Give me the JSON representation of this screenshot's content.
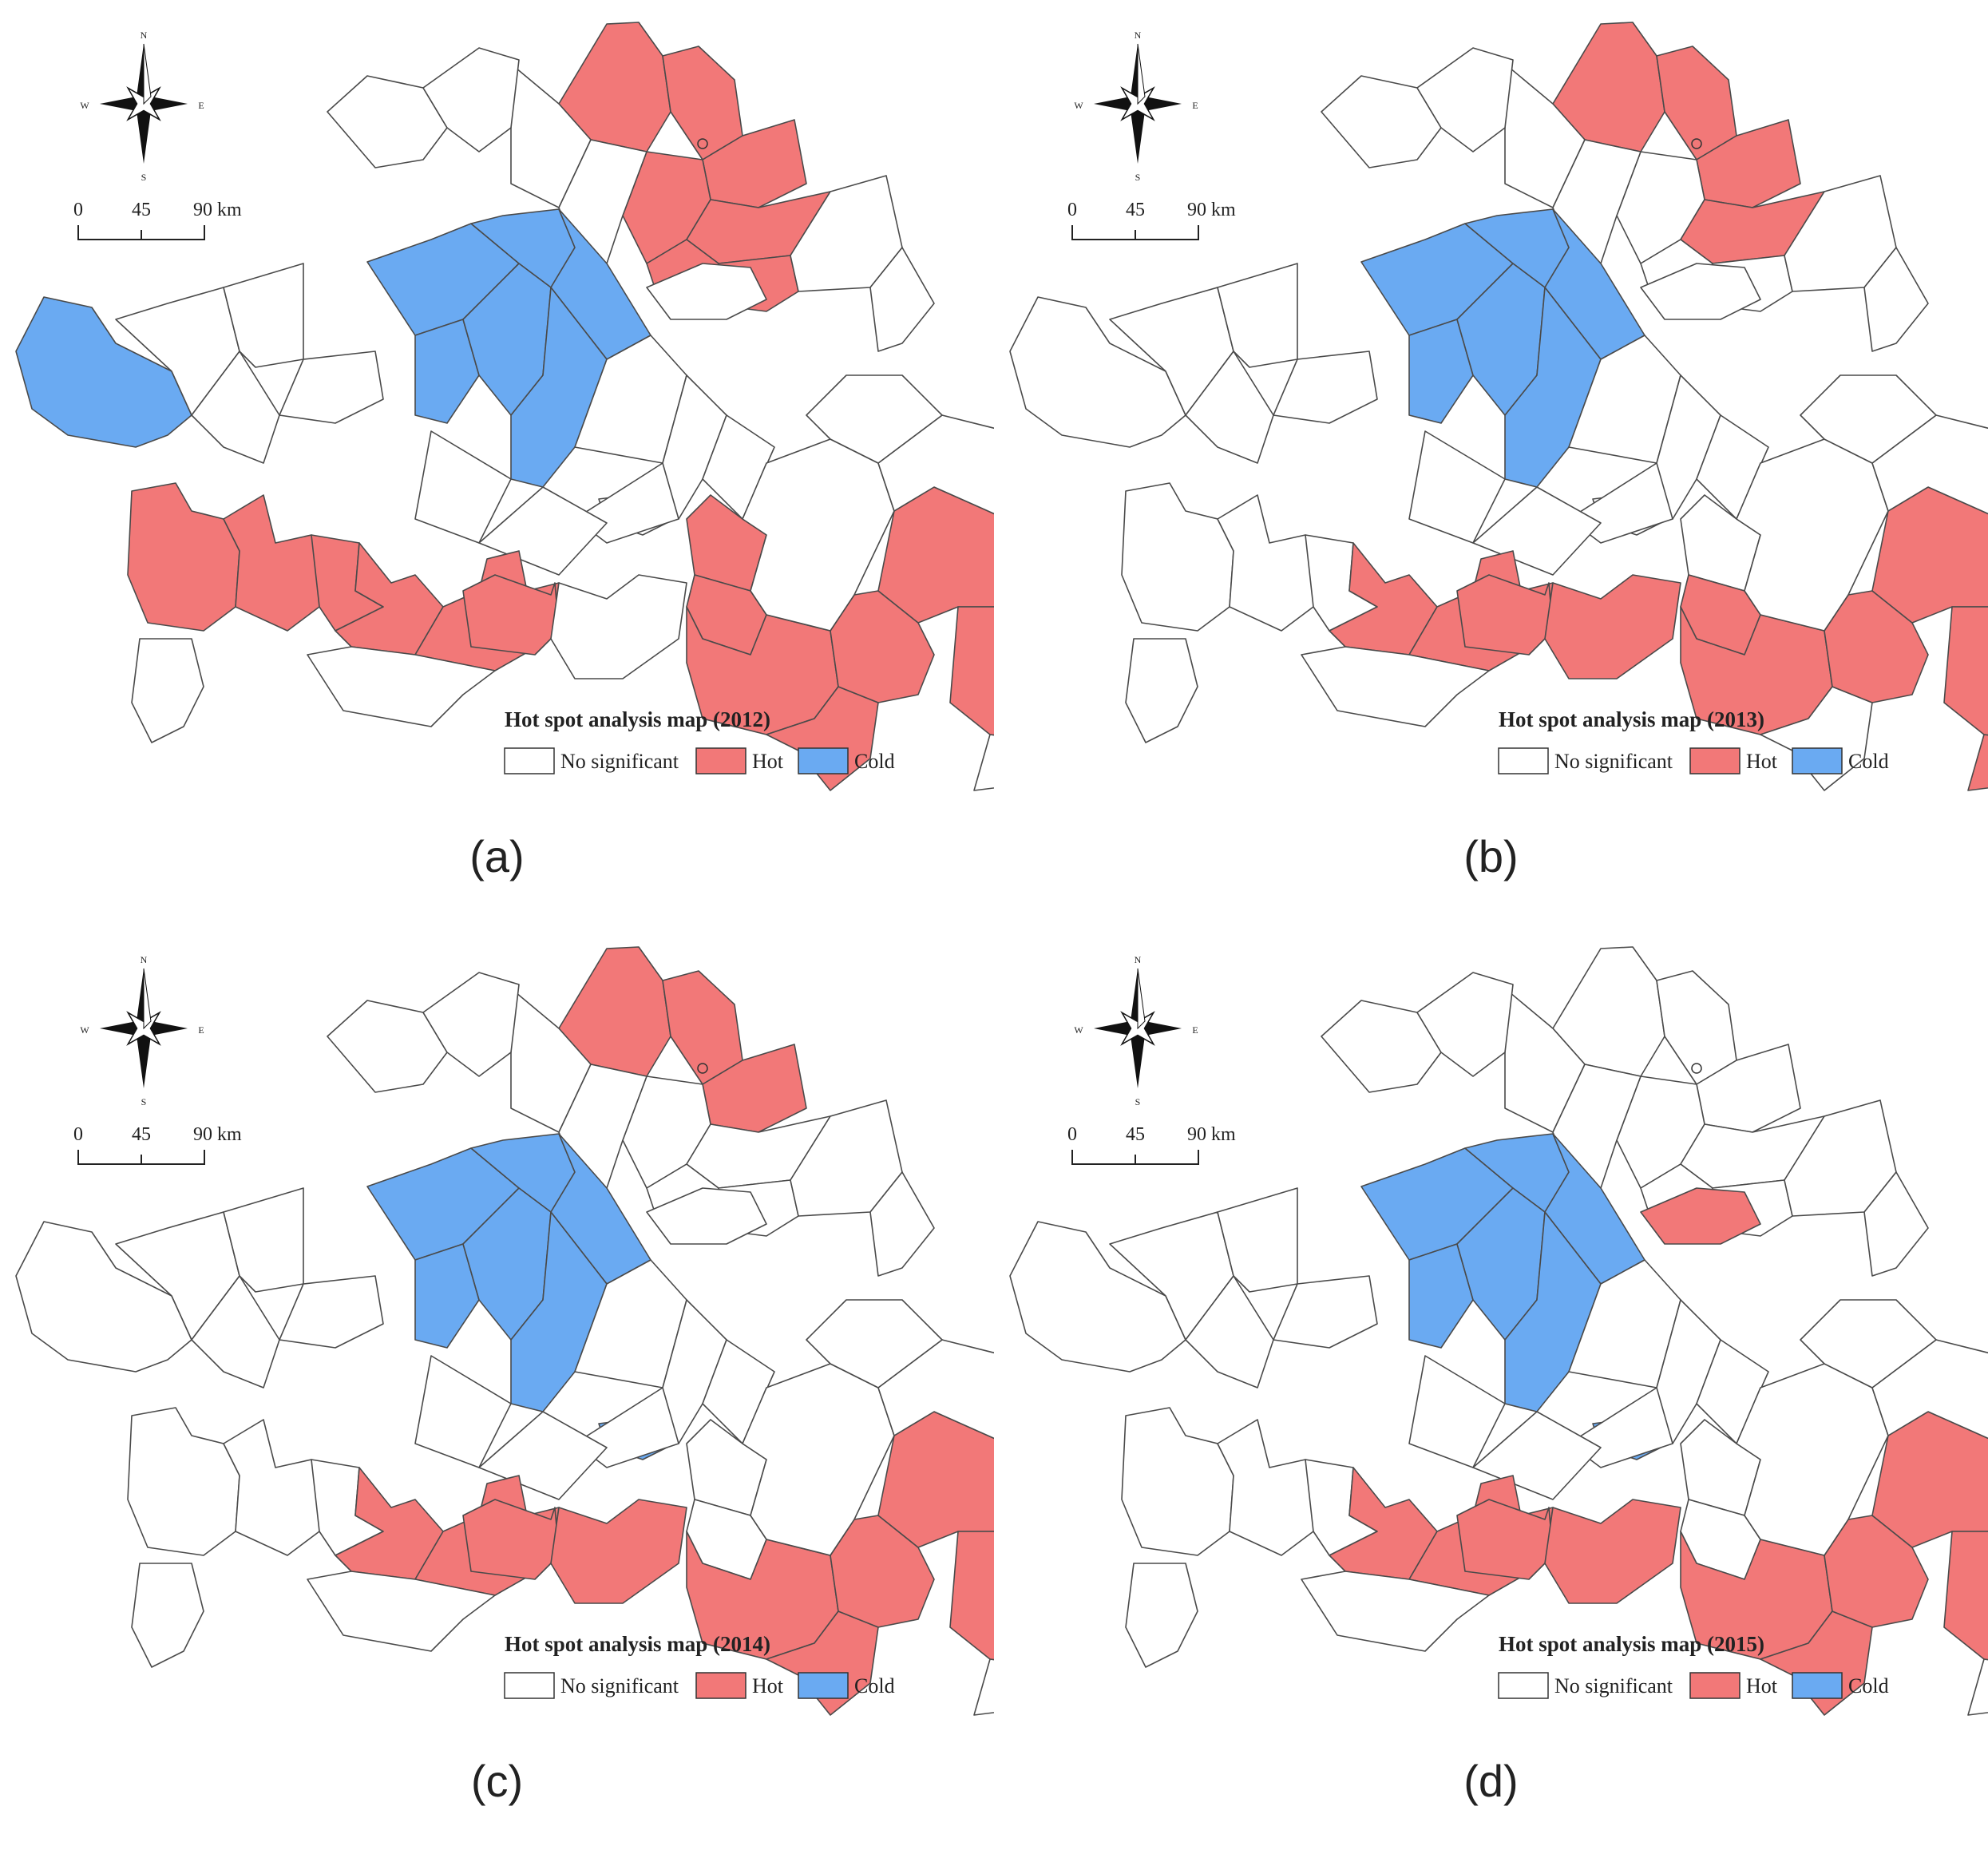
{
  "colors": {
    "none": "#ffffff",
    "hot": "#f27878",
    "cold": "#6aaaf2",
    "outline": "#4a4a4a"
  },
  "legend": {
    "none": "No significant",
    "hot": "Hot",
    "cold": "Cold"
  },
  "compass": {
    "n": "N",
    "s": "S",
    "e": "E",
    "w": "W"
  },
  "scalebar": {
    "labels": [
      "0",
      "45",
      "90 km"
    ]
  },
  "panels": [
    {
      "id": "a",
      "title": "Hot spot analysis map (2012)",
      "caption": "(a)",
      "hot": [
        "n1",
        "n2",
        "n3",
        "n4",
        "n5",
        "n6",
        "n7",
        "sw1",
        "sw2",
        "sw3",
        "s1",
        "s2",
        "s3",
        "se1",
        "se2",
        "se3",
        "se4",
        "se5",
        "se6",
        "se7"
      ],
      "cold": [
        "w1",
        "c1",
        "c2",
        "c3",
        "c4",
        "c5",
        "c6"
      ]
    },
    {
      "id": "b",
      "title": "Hot spot analysis map (2013)",
      "caption": "(b)",
      "hot": [
        "n1",
        "n2",
        "n3",
        "n5",
        "s1",
        "s2",
        "s3",
        "s4",
        "se2",
        "se3",
        "se5",
        "se6",
        "se7",
        "se8"
      ],
      "cold": [
        "c1",
        "c2",
        "c3",
        "c4",
        "c5",
        "c6"
      ]
    },
    {
      "id": "c",
      "title": "Hot spot analysis map (2014)",
      "caption": "(c)",
      "hot": [
        "n1",
        "n2",
        "n3",
        "s1",
        "s2",
        "s3",
        "s4",
        "se3",
        "se4",
        "se5",
        "se6",
        "se7"
      ],
      "cold": [
        "c1",
        "c2",
        "c3",
        "c4",
        "c5",
        "c6",
        "cm"
      ]
    },
    {
      "id": "d",
      "title": "Hot spot analysis map (2015)",
      "caption": "(d)",
      "hot": [
        "ne",
        "s1",
        "s2",
        "s3",
        "s4",
        "se3",
        "se4",
        "se5",
        "se6",
        "se7"
      ],
      "cold": [
        "c1",
        "c2",
        "c3",
        "c4",
        "c5",
        "c6",
        "cm"
      ]
    }
  ]
}
